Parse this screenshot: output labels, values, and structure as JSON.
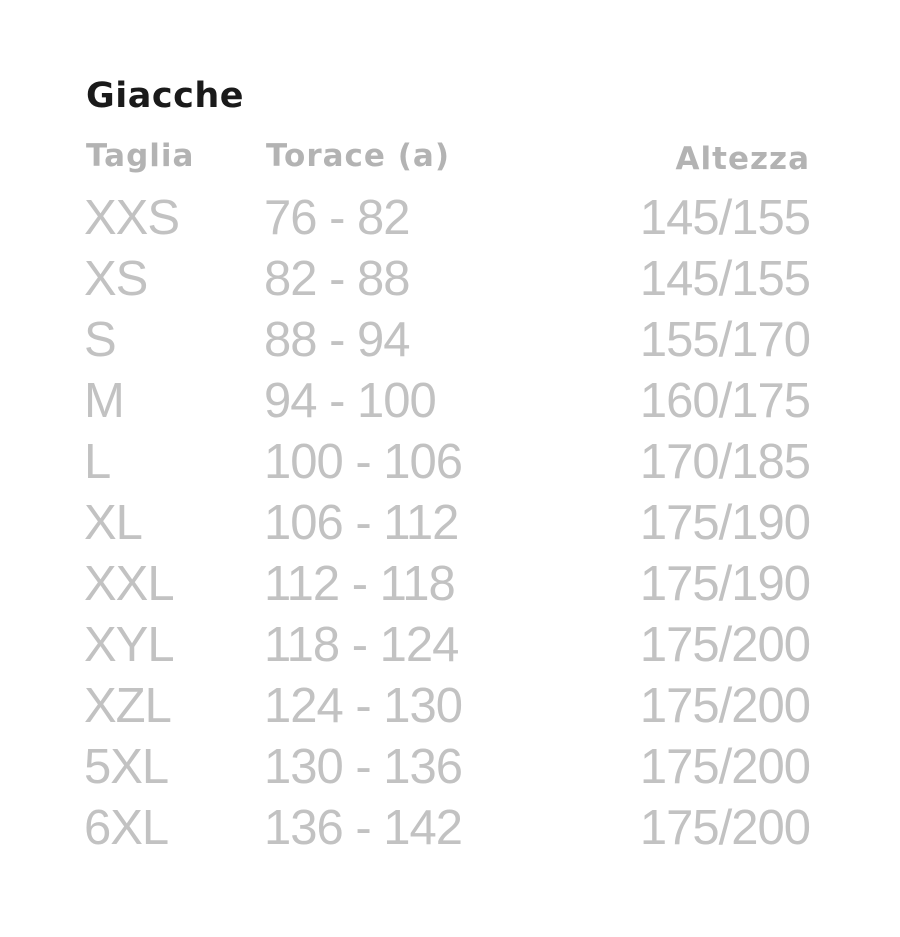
{
  "title": "Giacche",
  "headers": {
    "size": "Taglia",
    "chest": "Torace (a)",
    "height": "Altezza"
  },
  "rows": [
    {
      "size": "XXS",
      "chest": "76 - 82",
      "height": "145/155"
    },
    {
      "size": "XS",
      "chest": "82 - 88",
      "height": "145/155"
    },
    {
      "size": "S",
      "chest": "88 - 94",
      "height": "155/170"
    },
    {
      "size": "M",
      "chest": "94 - 100",
      "height": "160/175"
    },
    {
      "size": "L",
      "chest": "100 - 106",
      "height": "170/185"
    },
    {
      "size": "XL",
      "chest": "106 - 112",
      "height": "175/190"
    },
    {
      "size": "XXL",
      "chest": "112 - 118",
      "height": "175/190"
    },
    {
      "size": "XYL",
      "chest": "118 - 124",
      "height": "175/200"
    },
    {
      "size": "XZL",
      "chest": "124 - 130",
      "height": "175/200"
    },
    {
      "size": "5XL",
      "chest": "130 - 136",
      "height": "175/200"
    },
    {
      "size": "6XL",
      "chest": "136 - 142",
      "height": "175/200"
    }
  ]
}
